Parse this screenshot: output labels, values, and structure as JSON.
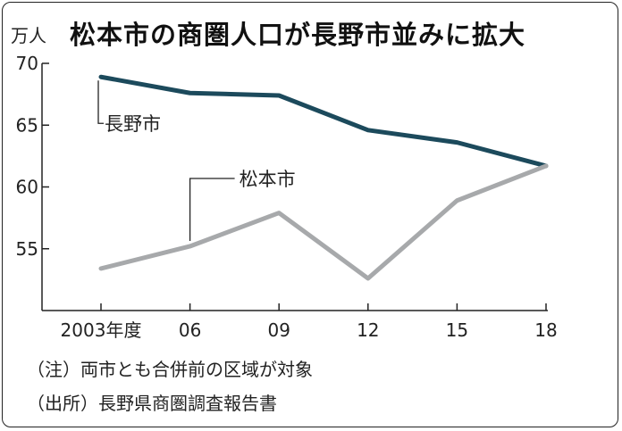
{
  "title": "松本市の商圏人口が長野市並みに拡大",
  "unit_label": "万人",
  "notes": [
    "（注）両市とも合併前の区域が対象",
    "（出所）長野県商圏調査報告書"
  ],
  "colors": {
    "nagano": "#1c4a5c",
    "matsumoto": "#a7a9ab",
    "axis": "#222222"
  },
  "chart_data": {
    "type": "line",
    "title": "松本市の商圏人口が長野市並みに拡大",
    "ylabel": "万人",
    "xlabel": "",
    "categories": [
      "2003年度",
      "06",
      "09",
      "12",
      "15",
      "18"
    ],
    "ylim": [
      50,
      70
    ],
    "yticks": [
      55,
      60,
      65,
      70
    ],
    "grid": false,
    "series": [
      {
        "name": "長野市",
        "values": [
          68.9,
          67.6,
          67.4,
          64.6,
          63.6,
          61.7
        ]
      },
      {
        "name": "松本市",
        "values": [
          53.4,
          55.2,
          57.9,
          52.6,
          58.9,
          61.7
        ]
      }
    ]
  }
}
